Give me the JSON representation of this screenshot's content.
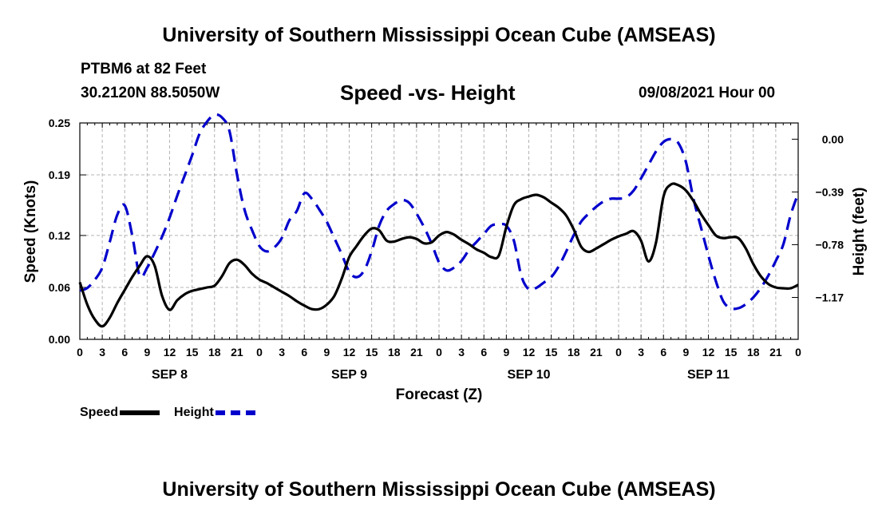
{
  "page": {
    "header_title": "University of Southern Mississippi Ocean Cube (AMSEAS)",
    "footer_title": "University of Southern Mississippi Ocean Cube (AMSEAS)",
    "station": "PTBM6 at 82 Feet",
    "coords": "30.2120N  88.5050W",
    "subtitle": "Speed -vs- Height",
    "datetime": "09/08/2021 Hour 00"
  },
  "chart_data": {
    "type": "line",
    "title": "Speed -vs- Height",
    "xlabel": "Forecast (Z)",
    "ylabel_left": "Speed (Knots)",
    "ylabel_right": "Height (feet)",
    "x_hours_range": [
      0,
      96
    ],
    "hour_tick_labels": [
      "0",
      "3",
      "6",
      "9",
      "12",
      "15",
      "18",
      "21",
      "0",
      "3",
      "6",
      "9",
      "12",
      "15",
      "18",
      "21",
      "0",
      "3",
      "6",
      "9",
      "12",
      "15",
      "18",
      "21",
      "0",
      "3",
      "6",
      "9",
      "12",
      "15",
      "18",
      "21",
      "0"
    ],
    "day_labels": [
      {
        "label": "SEP 8",
        "hour": 12
      },
      {
        "label": "SEP 9",
        "hour": 36
      },
      {
        "label": "SEP 10",
        "hour": 60
      },
      {
        "label": "SEP 11",
        "hour": 84
      }
    ],
    "left_axis": {
      "ylim": [
        0,
        0.25
      ],
      "ticks": [
        0.0,
        0.06,
        0.12,
        0.19,
        0.25
      ],
      "tick_labels": [
        "0.00",
        "0.06",
        "0.12",
        "0.19",
        "0.25"
      ]
    },
    "right_axis": {
      "ylim": [
        -1.48,
        0.12
      ],
      "ticks": [
        0.0,
        -0.39,
        -0.78,
        -1.17
      ],
      "tick_labels": [
        "0.00",
        "-0.39",
        "-0.78",
        "-1.17"
      ]
    },
    "grid": true,
    "legend": "bottom-left",
    "series": [
      {
        "name": "Speed",
        "axis": "left",
        "color": "#000000",
        "style": "solid",
        "x": [
          0,
          1,
          2,
          3,
          4,
          5,
          6,
          7,
          8,
          9,
          10,
          11,
          12,
          13,
          14,
          15,
          16,
          17,
          18,
          19,
          20,
          21,
          22,
          23,
          24,
          25,
          26,
          27,
          28,
          29,
          30,
          31,
          32,
          33,
          34,
          35,
          36,
          37,
          38,
          39,
          40,
          41,
          42,
          43,
          44,
          45,
          46,
          47,
          48,
          49,
          50,
          51,
          52,
          53,
          54,
          55,
          56,
          57,
          58,
          59,
          60,
          61,
          62,
          63,
          64,
          65,
          66,
          67,
          68,
          69,
          70,
          71,
          72,
          73,
          74,
          75,
          76,
          77,
          78,
          79,
          80,
          81,
          82,
          83,
          84,
          85,
          86,
          87,
          88,
          89,
          90,
          91,
          92,
          93,
          94,
          95,
          96
        ],
        "values": [
          0.066,
          0.04,
          0.023,
          0.015,
          0.025,
          0.042,
          0.057,
          0.072,
          0.085,
          0.096,
          0.085,
          0.05,
          0.034,
          0.045,
          0.052,
          0.056,
          0.058,
          0.06,
          0.062,
          0.073,
          0.088,
          0.092,
          0.086,
          0.076,
          0.069,
          0.065,
          0.06,
          0.055,
          0.05,
          0.044,
          0.039,
          0.035,
          0.035,
          0.04,
          0.05,
          0.07,
          0.095,
          0.108,
          0.12,
          0.128,
          0.126,
          0.114,
          0.113,
          0.116,
          0.118,
          0.116,
          0.111,
          0.112,
          0.12,
          0.124,
          0.121,
          0.115,
          0.11,
          0.104,
          0.1,
          0.095,
          0.097,
          0.13,
          0.155,
          0.162,
          0.165,
          0.167,
          0.164,
          0.158,
          0.152,
          0.143,
          0.127,
          0.107,
          0.101,
          0.105,
          0.11,
          0.115,
          0.119,
          0.122,
          0.125,
          0.114,
          0.09,
          0.112,
          0.165,
          0.179,
          0.178,
          0.172,
          0.16,
          0.145,
          0.132,
          0.12,
          0.117,
          0.118,
          0.117,
          0.105,
          0.087,
          0.073,
          0.064,
          0.06,
          0.059,
          0.059,
          0.063
        ]
      },
      {
        "name": "Height",
        "axis": "right",
        "color": "#0000cc",
        "style": "dashed",
        "x": [
          0,
          1,
          2,
          3,
          4,
          5,
          6,
          7,
          8,
          9,
          10,
          11,
          12,
          13,
          14,
          15,
          16,
          17,
          18,
          19,
          20,
          21,
          22,
          23,
          24,
          25,
          26,
          27,
          28,
          29,
          30,
          31,
          32,
          33,
          34,
          35,
          36,
          37,
          38,
          39,
          40,
          41,
          42,
          43,
          44,
          45,
          46,
          47,
          48,
          49,
          50,
          51,
          52,
          53,
          54,
          55,
          56,
          57,
          58,
          59,
          60,
          61,
          62,
          63,
          64,
          65,
          66,
          67,
          68,
          69,
          70,
          71,
          72,
          73,
          74,
          75,
          76,
          77,
          78,
          79,
          80,
          81,
          82,
          83,
          84,
          85,
          86,
          87,
          88,
          89,
          90,
          91,
          92,
          93,
          94,
          95,
          96
        ],
        "values": [
          -1.12,
          -1.1,
          -1.04,
          -0.95,
          -0.76,
          -0.56,
          -0.49,
          -0.71,
          -1.01,
          -0.95,
          -0.84,
          -0.72,
          -0.58,
          -0.42,
          -0.27,
          -0.12,
          0.04,
          0.13,
          0.18,
          0.16,
          0.06,
          -0.26,
          -0.52,
          -0.67,
          -0.79,
          -0.83,
          -0.8,
          -0.73,
          -0.6,
          -0.53,
          -0.4,
          -0.44,
          -0.52,
          -0.61,
          -0.73,
          -0.85,
          -0.98,
          -1.02,
          -0.97,
          -0.83,
          -0.64,
          -0.53,
          -0.48,
          -0.45,
          -0.47,
          -0.55,
          -0.65,
          -0.77,
          -0.91,
          -0.97,
          -0.95,
          -0.9,
          -0.82,
          -0.76,
          -0.7,
          -0.64,
          -0.63,
          -0.64,
          -0.75,
          -1.01,
          -1.11,
          -1.1,
          -1.06,
          -1.02,
          -0.94,
          -0.83,
          -0.71,
          -0.61,
          -0.55,
          -0.5,
          -0.46,
          -0.44,
          -0.44,
          -0.43,
          -0.38,
          -0.29,
          -0.19,
          -0.09,
          -0.02,
          0.0,
          -0.03,
          -0.17,
          -0.44,
          -0.65,
          -0.86,
          -1.05,
          -1.2,
          -1.25,
          -1.25,
          -1.22,
          -1.17,
          -1.1,
          -1.01,
          -0.9,
          -0.78,
          -0.56,
          -0.4
        ]
      }
    ]
  }
}
